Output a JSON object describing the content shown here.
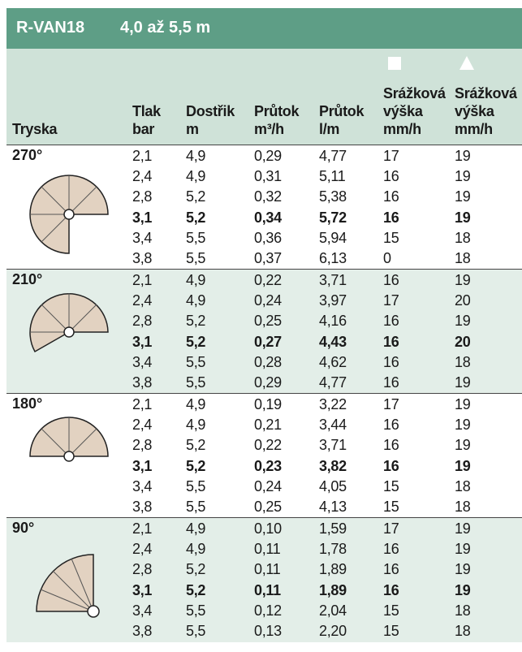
{
  "header": {
    "model": "R-VAN18",
    "range": "4,0 až 5,5 m"
  },
  "columns": [
    [
      "Tryska"
    ],
    [
      "Tlak",
      "bar"
    ],
    [
      "Dostřik",
      "m"
    ],
    [
      "Průtok",
      "m³/h"
    ],
    [
      "Průtok",
      "l/m"
    ],
    [
      "Srážková",
      "výška",
      "mm/h"
    ],
    [
      "Srážková",
      "výška",
      "mm/h"
    ]
  ],
  "groups": [
    {
      "nozzle": "270°",
      "rows": [
        [
          "2,1",
          "4,9",
          "0,29",
          "4,77",
          "17",
          "19"
        ],
        [
          "2,4",
          "4,9",
          "0,31",
          "5,11",
          "16",
          "19"
        ],
        [
          "2,8",
          "5,2",
          "0,32",
          "5,38",
          "16",
          "19"
        ],
        [
          "3,1",
          "5,2",
          "0,34",
          "5,72",
          "16",
          "19"
        ],
        [
          "3,4",
          "5,5",
          "0,36",
          "5,94",
          "15",
          "18"
        ],
        [
          "3,8",
          "5,5",
          "0,37",
          "6,13",
          "0",
          "18"
        ]
      ]
    },
    {
      "nozzle": "210°",
      "rows": [
        [
          "2,1",
          "4,9",
          "0,22",
          "3,71",
          "16",
          "19"
        ],
        [
          "2,4",
          "4,9",
          "0,24",
          "3,97",
          "17",
          "20"
        ],
        [
          "2,8",
          "5,2",
          "0,25",
          "4,16",
          "16",
          "19"
        ],
        [
          "3,1",
          "5,2",
          "0,27",
          "4,43",
          "16",
          "20"
        ],
        [
          "3,4",
          "5,5",
          "0,28",
          "4,62",
          "16",
          "18"
        ],
        [
          "3,8",
          "5,5",
          "0,29",
          "4,77",
          "16",
          "19"
        ]
      ]
    },
    {
      "nozzle": "180°",
      "rows": [
        [
          "2,1",
          "4,9",
          "0,19",
          "3,22",
          "17",
          "19"
        ],
        [
          "2,4",
          "4,9",
          "0,21",
          "3,44",
          "16",
          "19"
        ],
        [
          "2,8",
          "5,2",
          "0,22",
          "3,71",
          "16",
          "19"
        ],
        [
          "3,1",
          "5,2",
          "0,23",
          "3,82",
          "16",
          "19"
        ],
        [
          "3,4",
          "5,5",
          "0,24",
          "4,05",
          "15",
          "18"
        ],
        [
          "3,8",
          "5,5",
          "0,25",
          "4,13",
          "15",
          "18"
        ]
      ]
    },
    {
      "nozzle": "90°",
      "rows": [
        [
          "2,1",
          "4,9",
          "0,10",
          "1,59",
          "17",
          "19"
        ],
        [
          "2,4",
          "4,9",
          "0,11",
          "1,78",
          "16",
          "19"
        ],
        [
          "2,8",
          "5,2",
          "0,11",
          "1,89",
          "16",
          "19"
        ],
        [
          "3,1",
          "5,2",
          "0,11",
          "1,89",
          "16",
          "19"
        ],
        [
          "3,4",
          "5,5",
          "0,12",
          "2,04",
          "15",
          "18"
        ],
        [
          "3,8",
          "5,5",
          "0,13",
          "2,20",
          "15",
          "18"
        ]
      ]
    }
  ]
}
